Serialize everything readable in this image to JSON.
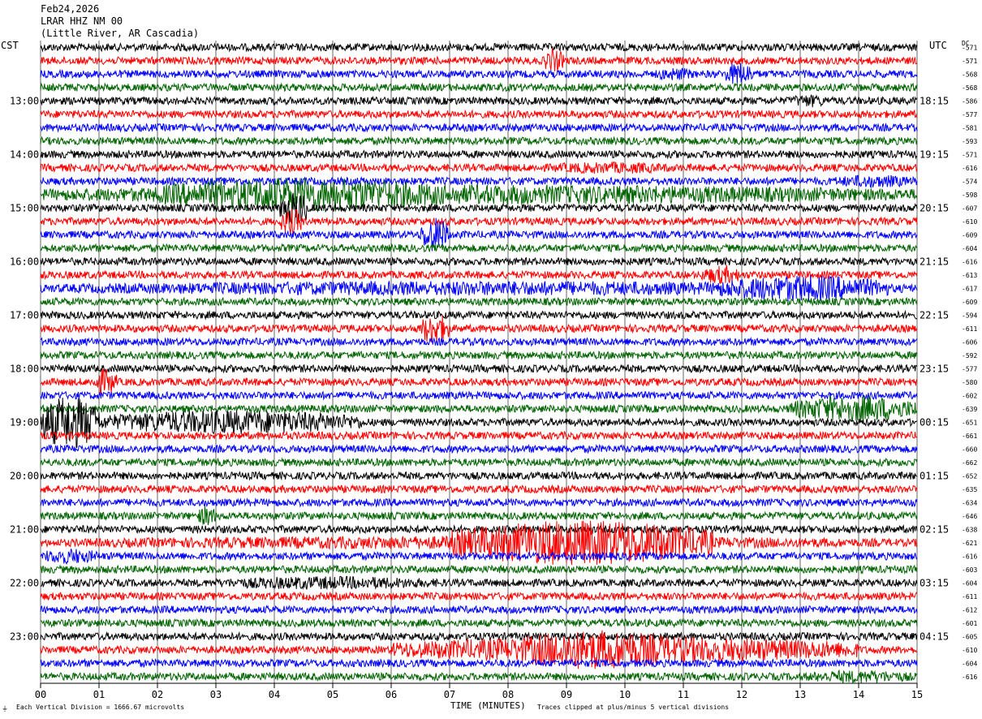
{
  "header": {
    "date": "Feb24,2026",
    "station": "LRAR HHZ NM 00",
    "location": "(Little River, AR Cascadia)"
  },
  "left_tz": "CST",
  "right_tz": "UTC",
  "dc_label": "DC",
  "footer": {
    "scale_note": "Each Vertical Division = 1666.67 microvolts",
    "xlabel": "TIME (MINUTES)",
    "clip_note": "Traces clipped at plus/minus 5 vertical divisions"
  },
  "colors": {
    "black": "#000000",
    "red": "#ff0000",
    "blue": "#0000ff",
    "green": "#006400",
    "grid": "#000000"
  },
  "chart_data": {
    "type": "line",
    "title": "LRAR HHZ NM 00",
    "xlabel": "TIME (MINUTES)",
    "xlim": [
      0,
      15
    ],
    "x_ticks": [
      "00",
      "01",
      "02",
      "03",
      "04",
      "05",
      "06",
      "07",
      "08",
      "09",
      "10",
      "11",
      "12",
      "13",
      "14",
      "15"
    ],
    "trace_minutes": 15,
    "trace_count": 48,
    "color_cycle": [
      "black",
      "red",
      "blue",
      "green"
    ],
    "left_hour_labels": [
      "13:00",
      "14:00",
      "15:00",
      "16:00",
      "17:00",
      "18:00",
      "19:00",
      "20:00",
      "21:00",
      "22:00",
      "23:00"
    ],
    "right_hour_labels": [
      "18:15",
      "19:15",
      "20:15",
      "21:15",
      "22:15",
      "23:15",
      "00:15",
      "01:15",
      "02:15",
      "03:15",
      "04:15"
    ],
    "hour_label_first_trace": 4,
    "dc_offsets": [
      -571,
      -571,
      -568,
      -568,
      -586,
      -577,
      -581,
      -593,
      -571,
      -616,
      -574,
      -598,
      -607,
      -610,
      -609,
      -604,
      -616,
      -613,
      -617,
      -609,
      -594,
      -611,
      -606,
      -592,
      -577,
      -580,
      -602,
      -639,
      -651,
      -661,
      -660,
      -662,
      -652,
      -635,
      -634,
      -646,
      -638,
      -621,
      -616,
      -603,
      -604,
      -611,
      -612,
      -601,
      -605,
      -610,
      -604,
      -616
    ],
    "base_amplitude": 0.28,
    "events": [
      {
        "trace": 1,
        "start": 8.6,
        "end": 8.95,
        "amplitude": 0.9
      },
      {
        "trace": 2,
        "start": 10.5,
        "end": 11.2,
        "amplitude": 0.5
      },
      {
        "trace": 2,
        "start": 11.7,
        "end": 12.2,
        "amplitude": 0.9
      },
      {
        "trace": 4,
        "start": 12.8,
        "end": 13.5,
        "amplitude": 0.5
      },
      {
        "trace": 9,
        "start": 8.5,
        "end": 11.0,
        "amplitude": 0.45
      },
      {
        "trace": 10,
        "start": 13.5,
        "end": 15.0,
        "amplitude": 0.5
      },
      {
        "trace": 11,
        "start": 0.0,
        "end": 15.0,
        "amplitude": 0.75
      },
      {
        "trace": 11,
        "start": 2.0,
        "end": 7.0,
        "amplitude": 1.3
      },
      {
        "trace": 12,
        "start": 4.1,
        "end": 4.6,
        "amplitude": 1.3
      },
      {
        "trace": 13,
        "start": 4.1,
        "end": 4.5,
        "amplitude": 1.0
      },
      {
        "trace": 14,
        "start": 6.5,
        "end": 7.0,
        "amplitude": 1.3
      },
      {
        "trace": 17,
        "start": 11.3,
        "end": 12.0,
        "amplitude": 0.7
      },
      {
        "trace": 18,
        "start": 0.0,
        "end": 15.0,
        "amplitude": 0.55
      },
      {
        "trace": 18,
        "start": 11.5,
        "end": 14.5,
        "amplitude": 1.0
      },
      {
        "trace": 21,
        "start": 6.5,
        "end": 7.0,
        "amplitude": 1.2
      },
      {
        "trace": 25,
        "start": 0.9,
        "end": 1.3,
        "amplitude": 1.0
      },
      {
        "trace": 27,
        "start": 12.8,
        "end": 15.0,
        "amplitude": 1.0
      },
      {
        "trace": 28,
        "start": 0.0,
        "end": 1.0,
        "amplitude": 2.0
      },
      {
        "trace": 28,
        "start": 1.0,
        "end": 5.5,
        "amplitude": 0.9
      },
      {
        "trace": 35,
        "start": 2.7,
        "end": 3.0,
        "amplitude": 0.8
      },
      {
        "trace": 37,
        "start": 0.0,
        "end": 15.0,
        "amplitude": 0.5
      },
      {
        "trace": 37,
        "start": 7.0,
        "end": 11.5,
        "amplitude": 1.7
      },
      {
        "trace": 38,
        "start": 0.0,
        "end": 1.0,
        "amplitude": 0.6
      },
      {
        "trace": 40,
        "start": 2.8,
        "end": 7.0,
        "amplitude": 0.5
      },
      {
        "trace": 45,
        "start": 6.0,
        "end": 14.0,
        "amplitude": 1.0
      },
      {
        "trace": 45,
        "start": 8.0,
        "end": 11.0,
        "amplitude": 1.5
      },
      {
        "trace": 47,
        "start": 13.0,
        "end": 15.0,
        "amplitude": 0.5
      }
    ]
  }
}
